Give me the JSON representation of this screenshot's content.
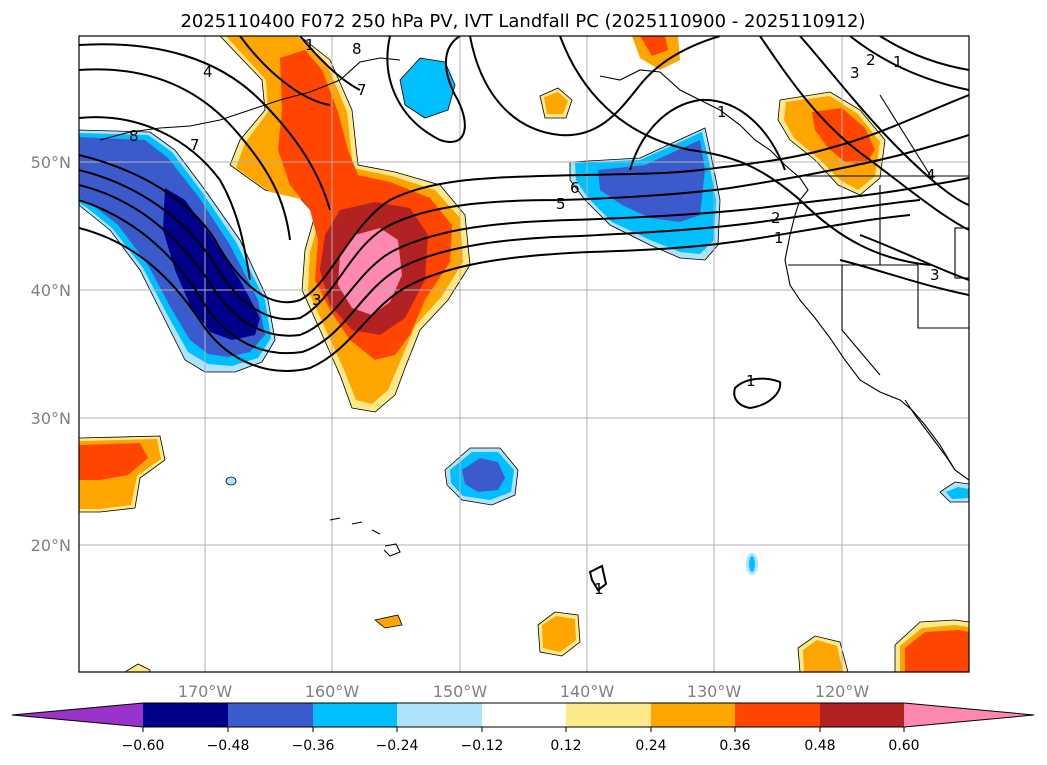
{
  "title": "2025110400 F072 250 hPa PV, IVT Landfall PC (2025110900 - 2025110912)",
  "colors": {
    "neg_060": "#9a33cc",
    "neg_048": "#00008b",
    "neg_036": "#3b5bcc",
    "neg_024": "#00bfff",
    "neg_012": "#aee3fb",
    "zero": "#ffffff",
    "pos_012": "#fde98a",
    "pos_024": "#ffa500",
    "pos_036": "#ff4500",
    "pos_048": "#b22222",
    "pos_060": "#ff88b0"
  },
  "map": {
    "lon_ticks": [
      "170°W",
      "160°W",
      "150°W",
      "140°W",
      "130°W",
      "120°W"
    ],
    "lat_ticks": [
      "50°N",
      "40°N",
      "30°N",
      "20°N"
    ],
    "contour_labels": [
      "8",
      "4",
      "7",
      "3",
      "6",
      "5",
      "2",
      "1",
      "1",
      "1",
      "1",
      "3",
      "2",
      "1",
      "4",
      "7",
      "8",
      "1",
      "3"
    ]
  },
  "colorbar": {
    "ticks": [
      "−0.60",
      "−0.48",
      "−0.36",
      "−0.24",
      "−0.12",
      "0.12",
      "0.24",
      "0.36",
      "0.48",
      "0.60"
    ]
  }
}
